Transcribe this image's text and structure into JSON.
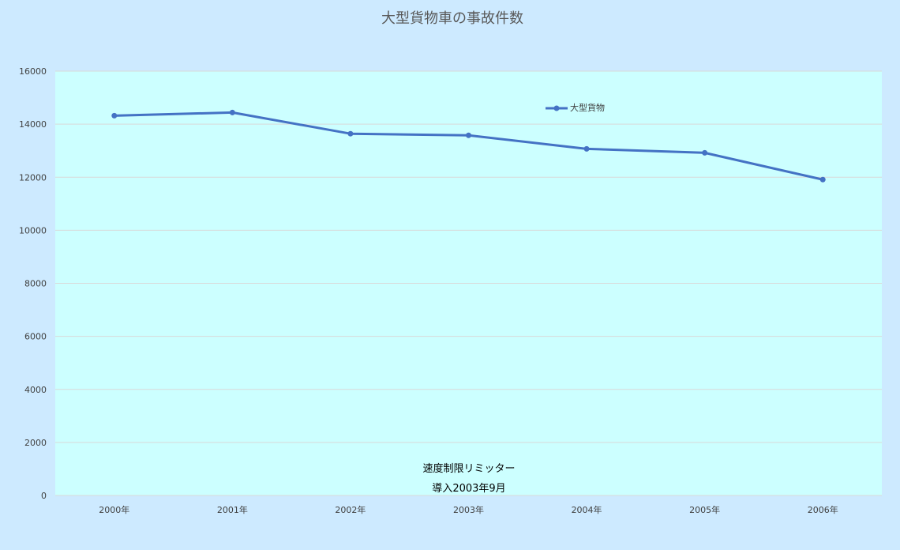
{
  "chart_data": {
    "type": "line",
    "title": "大型貨物車の事故件数",
    "xlabel": "",
    "ylabel": "",
    "categories": [
      "2000年",
      "2001年",
      "2002年",
      "2003年",
      "2004年",
      "2005年",
      "2006年"
    ],
    "series": [
      {
        "name": "大型貨物",
        "values": [
          14320,
          14440,
          13640,
          13580,
          13070,
          12920,
          11910
        ]
      }
    ],
    "ylim": [
      0,
      16000
    ],
    "yticks": [
      0,
      2000,
      4000,
      6000,
      8000,
      10000,
      12000,
      14000,
      16000
    ],
    "grid": true,
    "legend_position": "top-right",
    "annotations": [
      "速度制限リミッター",
      "導入2003年9月"
    ]
  },
  "colors": {
    "page_background": "#cdeaff",
    "plot_background": "#ccffff",
    "series_line": "#4472c4",
    "gridline": "#d9d9d9",
    "axis_text": "#404040",
    "title_text": "#595959"
  }
}
